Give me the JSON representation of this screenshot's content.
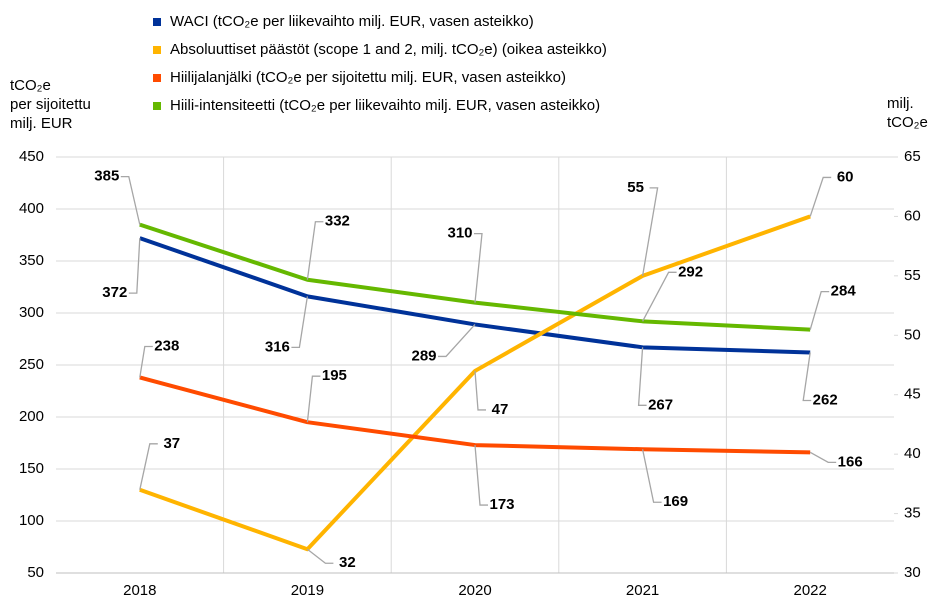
{
  "chart_data": {
    "type": "line",
    "y_label": [
      "tCO₂e",
      "per sijoitettu",
      "milj. EUR"
    ],
    "y2_label": [
      "milj.",
      "tCO₂e"
    ],
    "categories": [
      "2018",
      "2019",
      "2020",
      "2021",
      "2022"
    ],
    "series": [
      {
        "name": "WACI (tCO₂e per liikevaihto milj. EUR, vasen asteikko)",
        "color": "#003299",
        "values": [
          372,
          316,
          289,
          267,
          262
        ]
      },
      {
        "name": "Absoluuttiset päästöt (scope 1 and 2, milj. tCO₂e) (oikea asteikko)",
        "color": "#ffb400",
        "axis": "y2",
        "values": [
          37,
          32,
          47,
          55,
          60
        ]
      },
      {
        "name": "Hiilijalanjälki (tCO₂e per sijoitettu milj. EUR, vasen asteikko)",
        "color": "#ff4b00",
        "values": [
          238,
          195,
          173,
          169,
          166
        ]
      },
      {
        "name": "Hiili-intensiteetti (tCO₂e per liikevaihto milj. EUR, vasen asteikko)",
        "color": "#65b800",
        "values": [
          385,
          332,
          310,
          292,
          284
        ]
      }
    ],
    "ylim": [
      50,
      450
    ],
    "yticks": [
      50,
      100,
      150,
      200,
      250,
      300,
      350,
      400,
      450
    ],
    "y2lim": [
      30,
      65
    ],
    "y2ticks": [
      30,
      35,
      40,
      45,
      50,
      55,
      60,
      65
    ],
    "grid": true,
    "legend": "top"
  }
}
